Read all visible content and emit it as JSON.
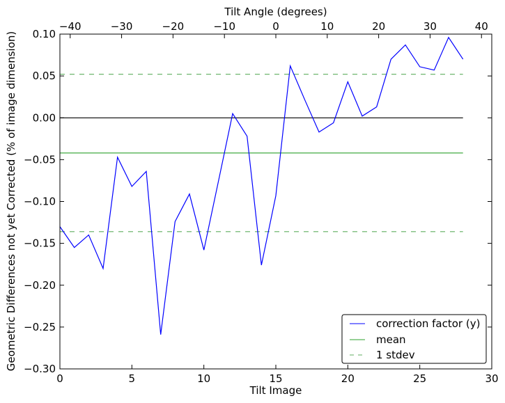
{
  "chart_data": {
    "type": "line",
    "xlabel": "Tilt Image",
    "ylabel": "Geometric Differences not yet Corrected (% of image dimension)",
    "top_xlabel": "Tilt Angle (degrees)",
    "xlim": [
      0,
      30
    ],
    "ylim": [
      -0.3,
      0.1
    ],
    "top_xlim": [
      -42,
      42
    ],
    "xticks": [
      0,
      5,
      10,
      15,
      20,
      25,
      30
    ],
    "yticks": [
      0.1,
      0.05,
      0.0,
      -0.05,
      -0.1,
      -0.15,
      -0.2,
      -0.25,
      -0.3
    ],
    "ytick_labels": [
      "0.10",
      "0.05",
      "0.00",
      "−0.05",
      "−0.10",
      "−0.15",
      "−0.20",
      "−0.25",
      "−0.30"
    ],
    "top_xticks": [
      -40,
      -30,
      -20,
      -10,
      0,
      10,
      20,
      30,
      40
    ],
    "top_xtick_labels": [
      "−40",
      "−30",
      "−20",
      "−10",
      "0",
      "10",
      "20",
      "30",
      "40"
    ],
    "series": [
      {
        "name": "correction factor (y)",
        "color": "#0000ff",
        "style": "solid",
        "x": [
          0,
          1,
          2,
          3,
          4,
          5,
          6,
          7,
          8,
          9,
          10,
          11,
          12,
          13,
          14,
          15,
          16,
          17,
          18,
          19,
          20,
          21,
          22,
          23,
          24,
          25,
          26,
          27,
          28
        ],
        "y": [
          -0.13,
          -0.155,
          -0.14,
          -0.18,
          -0.047,
          -0.082,
          -0.064,
          -0.259,
          -0.124,
          -0.091,
          -0.158,
          -0.077,
          0.005,
          -0.022,
          -0.176,
          -0.093,
          0.062,
          0.022,
          -0.017,
          -0.006,
          0.043,
          0.002,
          0.013,
          0.07,
          0.087,
          0.061,
          0.057,
          0.096,
          0.07
        ]
      },
      {
        "name": "mean",
        "color": "#2ca02c",
        "style": "solid",
        "x": [
          0,
          28
        ],
        "y": [
          -0.042,
          -0.042
        ]
      },
      {
        "name": "1 stdev",
        "color": "#5fae5f",
        "style": "dashed",
        "x": [
          0,
          28
        ],
        "y": [
          0.052,
          0.052
        ]
      },
      {
        "name": "1 stdev lower",
        "color": "#5fae5f",
        "style": "dashed",
        "x": [
          0,
          28
        ],
        "y": [
          -0.136,
          -0.136
        ]
      },
      {
        "name": "zero",
        "color": "#000000",
        "style": "solid",
        "x": [
          0,
          28
        ],
        "y": [
          0,
          0
        ]
      }
    ],
    "legend": {
      "placement": "lower-right",
      "entries": [
        {
          "label": "correction factor (y)",
          "color": "#0000ff",
          "style": "solid"
        },
        {
          "label": "mean",
          "color": "#2ca02c",
          "style": "solid"
        },
        {
          "label": "1 stdev",
          "color": "#5fae5f",
          "style": "dashed"
        }
      ]
    },
    "grid": false
  }
}
